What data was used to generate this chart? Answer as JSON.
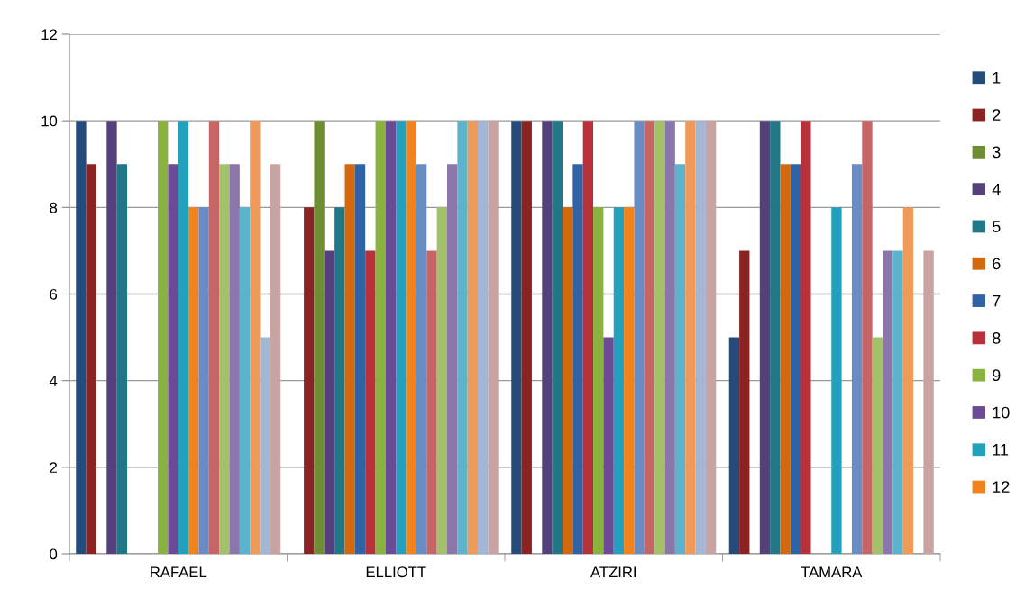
{
  "chart_data": {
    "type": "bar",
    "categories": [
      "RAFAEL",
      "ELLIOTT",
      "ATZIRI",
      "TAMARA"
    ],
    "series": [
      {
        "name": "1",
        "color": "#254a7c",
        "values": [
          10,
          0,
          10,
          5
        ]
      },
      {
        "name": "2",
        "color": "#8c2323",
        "values": [
          9,
          8,
          10,
          7
        ]
      },
      {
        "name": "3",
        "color": "#6f8d32",
        "values": [
          0,
          10,
          0,
          0
        ]
      },
      {
        "name": "4",
        "color": "#54407a",
        "values": [
          10,
          7,
          10,
          10
        ]
      },
      {
        "name": "5",
        "color": "#1f7788",
        "values": [
          9,
          8,
          10,
          10
        ]
      },
      {
        "name": "6",
        "color": "#d2690e",
        "values": [
          0,
          9,
          8,
          9
        ]
      },
      {
        "name": "7",
        "color": "#2f63a6",
        "values": [
          0,
          9,
          9,
          9
        ]
      },
      {
        "name": "8",
        "color": "#b8303a",
        "values": [
          0,
          7,
          10,
          10
        ]
      },
      {
        "name": "9",
        "color": "#8ab23e",
        "values": [
          10,
          10,
          8,
          0
        ]
      },
      {
        "name": "10",
        "color": "#6a4c96",
        "values": [
          9,
          10,
          5,
          0
        ]
      },
      {
        "name": "11",
        "color": "#23a0bc",
        "values": [
          10,
          10,
          8,
          8
        ]
      },
      {
        "name": "12",
        "color": "#f2821c",
        "values": [
          8,
          10,
          8,
          0
        ]
      },
      {
        "color": "#6a8cc4",
        "values": [
          8,
          9,
          10,
          9
        ]
      },
      {
        "color": "#c66466",
        "values": [
          10,
          7,
          10,
          10
        ]
      },
      {
        "color": "#a3c06a",
        "values": [
          9,
          8,
          10,
          5
        ]
      },
      {
        "color": "#8a76aa",
        "values": [
          9,
          9,
          10,
          7
        ]
      },
      {
        "color": "#5cb4cc",
        "values": [
          8,
          10,
          9,
          7
        ]
      },
      {
        "color": "#f09a5a",
        "values": [
          10,
          10,
          10,
          8
        ]
      },
      {
        "color": "#a4b6d4",
        "values": [
          5,
          10,
          10,
          0
        ]
      },
      {
        "color": "#c9a2a2",
        "values": [
          9,
          10,
          10,
          7
        ]
      }
    ],
    "ylim": [
      0,
      12
    ],
    "yticks": [
      0,
      2,
      4,
      6,
      8,
      10,
      12
    ],
    "grid": "y",
    "legend": "right"
  }
}
